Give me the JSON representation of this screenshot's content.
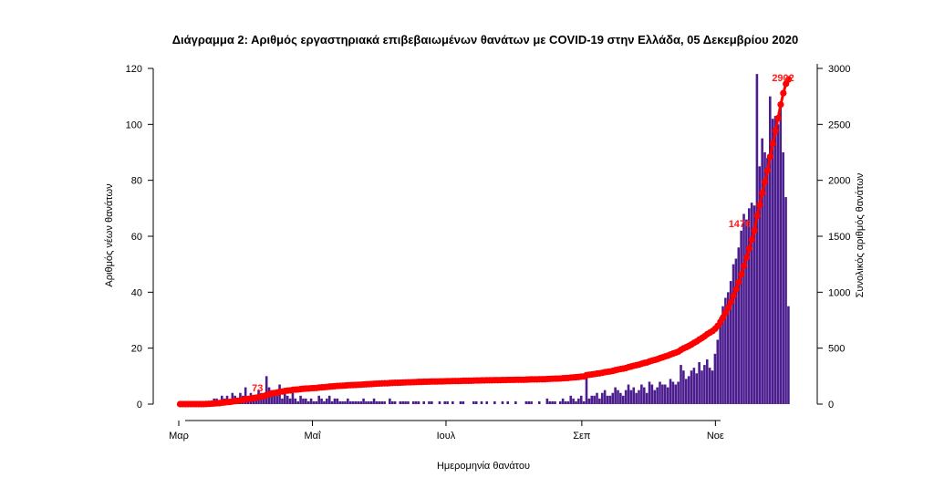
{
  "chart_data": {
    "type": "bar",
    "title": "Διάγραμμα 2: Αριθμός εργαστηριακά επιβεβαιωμένων θανάτων με COVID-19 στην Ελλάδα, 05 Δεκεμβρίου 2020",
    "xlabel": "Ημερομηνία θανάτου",
    "ylabel_left": "Αριθμός νέων θανάτων",
    "ylabel_right": "Συνολικός αριθμός θανάτων",
    "ylim_left": [
      0,
      120
    ],
    "ylim_right": [
      0,
      3000
    ],
    "yticks_left": [
      "0",
      "20",
      "40",
      "60",
      "80",
      "100",
      "120"
    ],
    "yticks_right": [
      "0",
      "500",
      "1000",
      "1500",
      "2000",
      "2500",
      "3000"
    ],
    "x_tick_labels": [
      "Μαρ",
      "Μαΐ",
      "Ιουλ",
      "Σεπ",
      "Νοε"
    ],
    "start_date": "2020-03-01",
    "end_date": "2020-12-05",
    "grid": false,
    "series": [
      {
        "kind": "bar",
        "color": "#4b1d8f",
        "values": [
          0,
          0,
          0,
          0,
          0,
          0,
          0,
          0,
          0,
          0,
          1,
          1,
          1,
          2,
          2,
          1,
          3,
          2,
          3,
          1,
          4,
          3,
          2,
          4,
          3,
          6,
          2,
          4,
          3,
          3,
          5,
          4,
          3,
          10,
          6,
          5,
          4,
          3,
          7,
          2,
          4,
          3,
          2,
          4,
          2,
          1,
          3,
          2,
          2,
          1,
          2,
          1,
          1,
          3,
          2,
          1,
          2,
          3,
          1,
          2,
          2,
          1,
          1,
          1,
          2,
          1,
          1,
          1,
          1,
          1,
          2,
          1,
          1,
          1,
          2,
          1,
          1,
          1,
          1,
          0,
          2,
          1,
          1,
          0,
          1,
          1,
          1,
          1,
          0,
          1,
          1,
          1,
          0,
          1,
          0,
          1,
          1,
          0,
          0,
          1,
          0,
          1,
          1,
          0,
          1,
          0,
          0,
          1,
          1,
          0,
          0,
          0,
          1,
          1,
          0,
          1,
          0,
          1,
          0,
          0,
          1,
          0,
          0,
          1,
          0,
          1,
          0,
          0,
          1,
          0,
          0,
          0,
          1,
          1,
          1,
          0,
          0,
          1,
          0,
          0,
          2,
          1,
          1,
          1,
          0,
          1,
          2,
          1,
          1,
          3,
          2,
          1,
          2,
          3,
          1,
          11,
          2,
          3,
          3,
          4,
          2,
          4,
          5,
          3,
          3,
          4,
          6,
          5,
          4,
          3,
          5,
          7,
          5,
          6,
          4,
          5,
          7,
          6,
          4,
          8,
          7,
          5,
          6,
          8,
          7,
          7,
          6,
          9,
          8,
          7,
          8,
          14,
          12,
          9,
          10,
          12,
          13,
          11,
          15,
          12,
          14,
          16,
          13,
          12,
          18,
          23,
          31,
          35,
          38,
          40,
          44,
          50,
          52,
          56,
          62,
          68,
          66,
          70,
          72,
          71,
          118,
          85,
          95,
          90,
          88,
          110,
          102,
          103,
          100,
          108,
          90,
          74,
          35
        ]
      },
      {
        "kind": "line",
        "color": "#ff0000",
        "name": "Συνολικός αριθμός θανάτων",
        "cumulative_from_bars": true,
        "scale_to_final": 2902
      }
    ],
    "annotations": [
      "73",
      "1476",
      "2902"
    ]
  }
}
